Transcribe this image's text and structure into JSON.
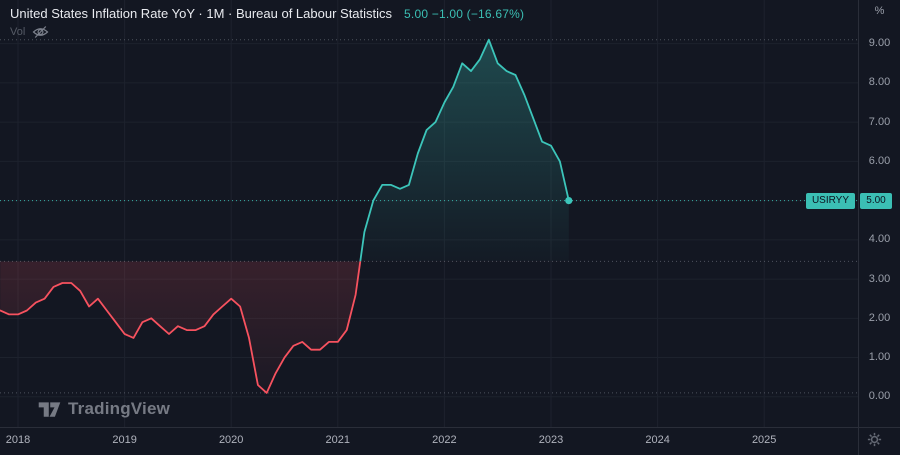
{
  "header": {
    "title": "United States Inflation Rate YoY · 1M · Bureau of Labour Statistics",
    "last_value": "5.00",
    "change": "−1.00 (−16.67%)",
    "vol_label": "Vol"
  },
  "price_scale": {
    "unit_label": "%",
    "ticks": [
      "9.00",
      "8.00",
      "7.00",
      "6.00",
      "5.00",
      "4.00",
      "3.00",
      "2.00",
      "1.00",
      "0.00"
    ],
    "price_label": {
      "symbol": "USIRYY",
      "value": "5.00"
    }
  },
  "time_scale": {
    "ticks": [
      "2018",
      "2019",
      "2020",
      "2021",
      "2022",
      "2023",
      "2024",
      "2025"
    ]
  },
  "watermark": {
    "text": "TradingView"
  },
  "colors": {
    "background": "#131722",
    "up": "#3bbfb4",
    "up_line": "#3cc5ba",
    "down": "#f7525f",
    "grid": "#1d222d",
    "axis_border": "#2a2e39",
    "axis_text": "#9ba0ab",
    "dotted_levels": "#7e838e",
    "badge_text": "#0c1420"
  },
  "chart_data": {
    "type": "area",
    "title": "United States Inflation Rate YoY",
    "ylabel": "%",
    "ylim": [
      0,
      9.5
    ],
    "x_years": [
      2018,
      2019,
      2020,
      2021,
      2022,
      2023,
      2024,
      2025
    ],
    "grid": true,
    "baseline": 3.45,
    "high_level": 9.1,
    "low_level": 0.1,
    "last_price_level": 5.0,
    "series": [
      {
        "name": "USIRYY",
        "start": "2017-11",
        "freq": "monthly",
        "values": [
          2.2,
          2.1,
          2.1,
          2.2,
          2.4,
          2.5,
          2.8,
          2.9,
          2.9,
          2.7,
          2.3,
          2.5,
          2.2,
          1.9,
          1.6,
          1.5,
          1.9,
          2.0,
          1.8,
          1.6,
          1.8,
          1.7,
          1.7,
          1.8,
          2.1,
          2.3,
          2.5,
          2.3,
          1.5,
          0.3,
          0.1,
          0.6,
          1.0,
          1.3,
          1.4,
          1.2,
          1.2,
          1.4,
          1.4,
          1.7,
          2.6,
          4.2,
          5.0,
          5.4,
          5.4,
          5.3,
          5.4,
          6.2,
          6.8,
          7.0,
          7.5,
          7.9,
          8.5,
          8.3,
          8.6,
          9.1,
          8.5,
          8.3,
          8.2,
          7.7,
          7.1,
          6.5,
          6.4,
          6.0,
          5.0
        ]
      }
    ]
  }
}
